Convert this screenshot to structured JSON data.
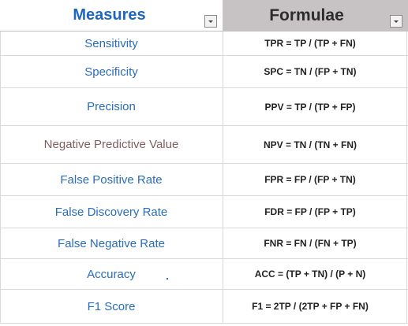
{
  "header": {
    "measures_label": "Measures",
    "formulae_label": "Formulae"
  },
  "rows": [
    {
      "measure": "Sensitivity",
      "formula": "TPR = TP / (TP + FN)"
    },
    {
      "measure": "Specificity",
      "formula": "SPC = TN / (FP + TN)"
    },
    {
      "measure": "Precision",
      "formula": "PPV = TP / (TP + FP)"
    },
    {
      "measure": "Negative Predictive Value",
      "formula": "NPV = TN / (TN + FN)"
    },
    {
      "measure": "False Positive Rate",
      "formula": "FPR = FP / (FP + TN)"
    },
    {
      "measure": "False Discovery Rate",
      "formula": "FDR = FP / (FP + TP)"
    },
    {
      "measure": "False Negative Rate",
      "formula": "FNR = FN / (FN + TP)"
    },
    {
      "measure": "Accuracy",
      "formula": "ACC = (TP + TN) / (P + N)"
    },
    {
      "measure": "F1 Score",
      "formula": "F1 = 2TP / (2TP + FP + FN)"
    }
  ],
  "icons": {
    "filter_dropdown": "chevron-down-icon"
  },
  "colors": {
    "measure_text": "#2a6db8",
    "measure_text_highlight": "#7f5f5f",
    "header_measures": "#1f66c1",
    "header_formulae_bg": "#c7c3c4",
    "formula_text": "#222222"
  }
}
